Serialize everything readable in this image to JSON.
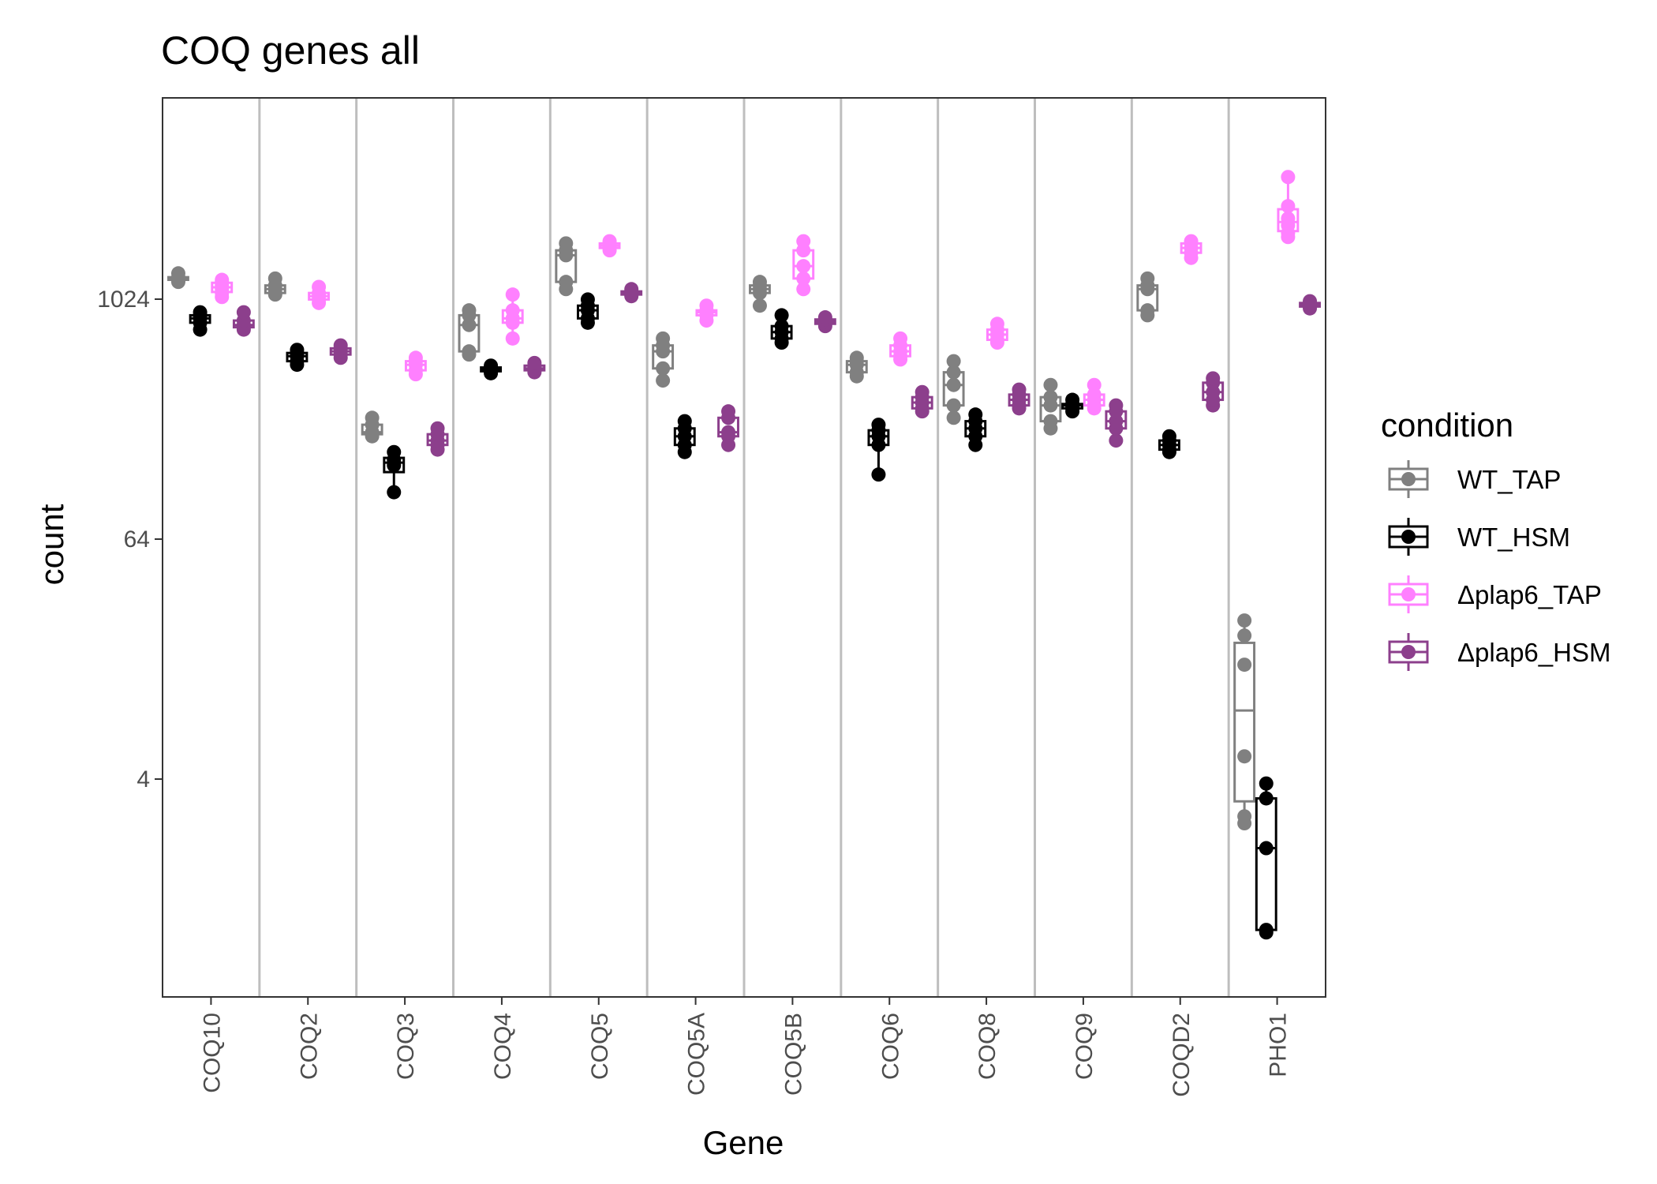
{
  "chart_data": {
    "type": "box",
    "title": "COQ genes all",
    "xlabel": "Gene",
    "ylabel": "count",
    "y_scale": "log2",
    "ylim": [
      0.55,
      4800
    ],
    "yticks": [
      {
        "value": 4,
        "label": "4"
      },
      {
        "value": 64,
        "label": "64"
      },
      {
        "value": 1024,
        "label": "1024"
      }
    ],
    "categories": [
      "COQ10",
      "COQ2",
      "COQ3",
      "COQ4",
      "COQ5",
      "COQ5A",
      "COQ5B",
      "COQ6",
      "COQ8",
      "COQ9",
      "COQD2",
      "PHO1"
    ],
    "legend": {
      "title": "condition",
      "position": "right"
    },
    "series": [
      {
        "name": "WT_TAP",
        "color": "#808080",
        "values": [
          [
            1380,
            1320,
            1300,
            1280,
            1250
          ],
          [
            1300,
            1200,
            1150,
            1100,
            1080
          ],
          [
            260,
            240,
            220,
            215,
            210
          ],
          [
            900,
            850,
            760,
            560,
            540
          ],
          [
            1950,
            1800,
            1700,
            1250,
            1150
          ],
          [
            650,
            600,
            560,
            460,
            400
          ],
          [
            1250,
            1200,
            1150,
            1100,
            950
          ],
          [
            520,
            500,
            480,
            440,
            420
          ],
          [
            500,
            440,
            380,
            300,
            260
          ],
          [
            380,
            330,
            300,
            250,
            230
          ],
          [
            1300,
            1200,
            1150,
            900,
            850
          ],
          [
            25,
            21,
            15,
            5.2,
            2.6,
            2.4
          ]
        ]
      },
      {
        "name": "WT_HSM",
        "color": "#000000",
        "values": [
          [
            880,
            850,
            820,
            780,
            720
          ],
          [
            570,
            550,
            530,
            500,
            480
          ],
          [
            175,
            160,
            150,
            110
          ],
          [
            475,
            465,
            455,
            445,
            435
          ],
          [
            1020,
            950,
            900,
            820,
            780
          ],
          [
            250,
            230,
            210,
            190,
            175
          ],
          [
            850,
            750,
            700,
            650,
            620
          ],
          [
            240,
            225,
            210,
            190,
            135
          ],
          [
            270,
            250,
            230,
            210,
            190
          ],
          [
            320,
            305,
            300,
            290,
            280
          ],
          [
            210,
            200,
            190,
            180,
            175
          ],
          [
            3.8,
            3.2,
            1.8,
            0.7,
            0.68
          ]
        ]
      },
      {
        "name": "Δplap6_TAP",
        "color": "#ff80ff",
        "values": [
          [
            1280,
            1250,
            1200,
            1150,
            1100,
            1050
          ],
          [
            1180,
            1100,
            1060,
            1020,
            980
          ],
          [
            520,
            500,
            480,
            450,
            430
          ],
          [
            1080,
            900,
            820,
            780,
            650
          ],
          [
            2000,
            1950,
            1900,
            1850,
            1800
          ],
          [
            950,
            900,
            880,
            850,
            800
          ],
          [
            2000,
            1800,
            1500,
            1300,
            1150
          ],
          [
            650,
            600,
            560,
            530,
            510
          ],
          [
            770,
            720,
            680,
            640,
            620
          ],
          [
            380,
            340,
            320,
            300,
            290
          ],
          [
            2000,
            1950,
            1850,
            1750,
            1650
          ],
          [
            4200,
            3000,
            2600,
            2400,
            2200,
            2100
          ]
        ]
      },
      {
        "name": "Δplap6_HSM",
        "color": "#8c3f8c",
        "values": [
          [
            880,
            800,
            760,
            740,
            720
          ],
          [
            600,
            580,
            560,
            540,
            520
          ],
          [
            230,
            215,
            200,
            190,
            180
          ],
          [
            490,
            475,
            460,
            450,
            440
          ],
          [
            1150,
            1120,
            1100,
            1080,
            1060
          ],
          [
            280,
            260,
            220,
            210,
            190
          ],
          [
            830,
            810,
            790,
            770,
            750
          ],
          [
            350,
            330,
            310,
            290,
            280
          ],
          [
            360,
            340,
            320,
            300,
            290
          ],
          [
            300,
            280,
            250,
            230,
            200
          ],
          [
            410,
            390,
            350,
            320,
            300
          ],
          [
            1000,
            980,
            960,
            940,
            920
          ]
        ]
      }
    ]
  }
}
